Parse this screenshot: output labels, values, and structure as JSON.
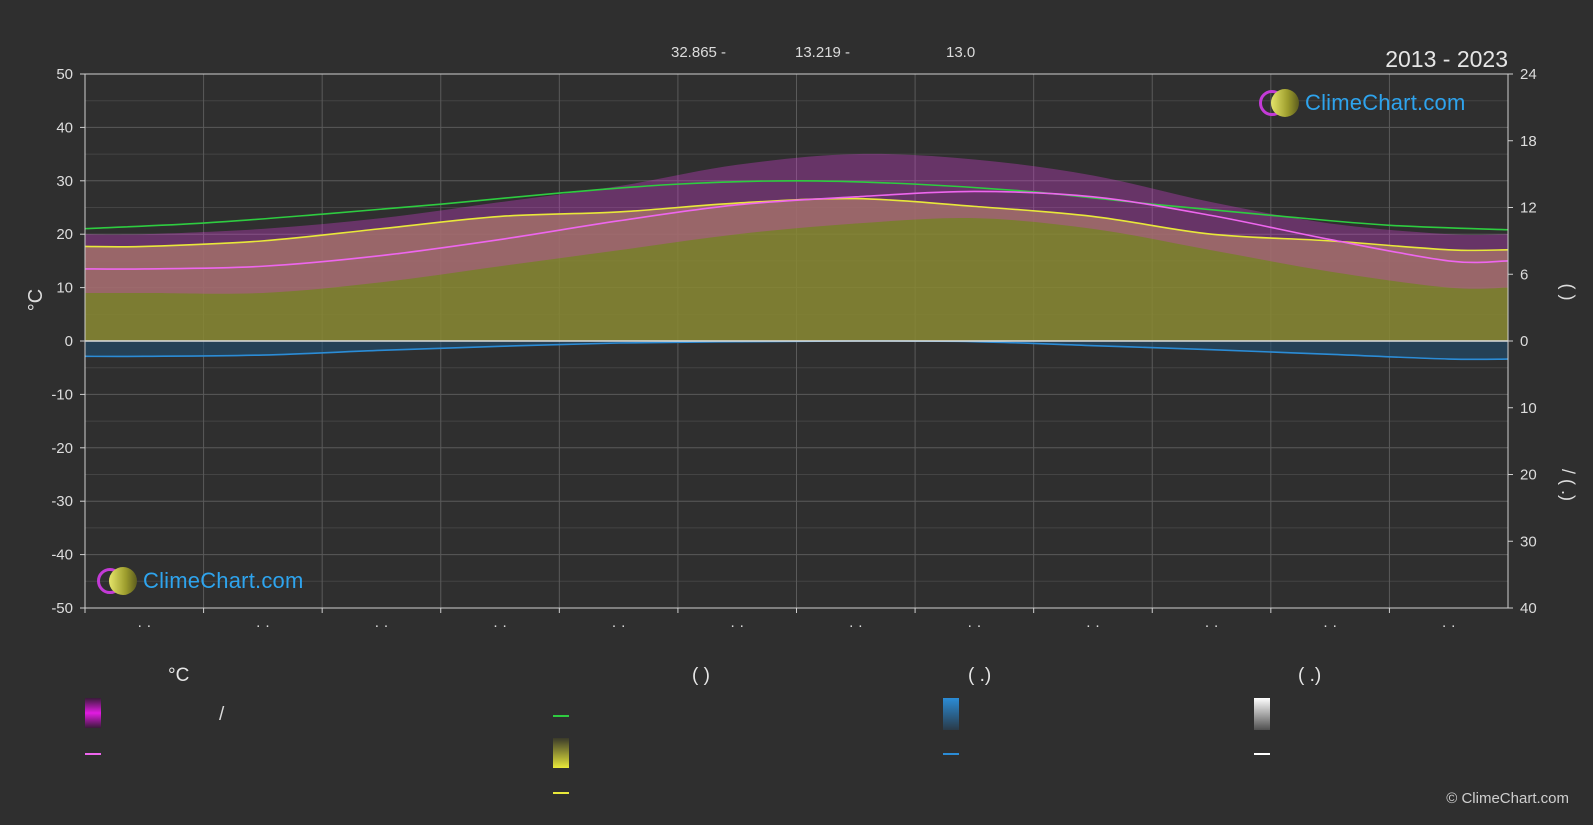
{
  "header": {
    "year_range": "2013 - 2023",
    "stats": [
      "32.865 -",
      "13.219 -",
      "13.0"
    ]
  },
  "chart_data": {
    "type": "area",
    "left_axis": {
      "label": "°C",
      "ylim": [
        -50,
        50
      ],
      "ticks": [
        50,
        40,
        30,
        20,
        10,
        0,
        -10,
        -20,
        -30,
        -40,
        -50
      ]
    },
    "right_axis_top": {
      "label": "(   )",
      "ylim": [
        0,
        24
      ],
      "ticks": [
        24,
        18,
        12,
        6,
        0
      ]
    },
    "right_axis_bottom": {
      "label": "/  (  .)",
      "ylim": [
        0,
        40
      ],
      "ticks": [
        0,
        10,
        20,
        30,
        40
      ]
    },
    "x_months": 12,
    "month_tick_labels": [
      "· ·",
      "· ·",
      "· ·",
      "· ·",
      "· ·",
      "· ·",
      "· ·",
      "· ·",
      "· ·",
      "· ·",
      "· ·",
      "· ·"
    ],
    "grid": true,
    "series": [
      {
        "key": "daylight",
        "color": "#2ecc40",
        "axis": "right_top",
        "x": [
          0,
          1,
          2,
          3,
          4,
          5,
          6,
          7,
          8,
          9,
          10,
          11,
          12
        ],
        "values": [
          10.1,
          10.6,
          11.4,
          12.3,
          13.3,
          14.1,
          14.4,
          14.1,
          13.4,
          12.3,
          11.3,
          10.4,
          10.0
        ]
      },
      {
        "key": "sunshine",
        "color": "#e8e83a",
        "axis": "right_top",
        "x": [
          0.5,
          1.5,
          2.5,
          3.5,
          4.5,
          5.5,
          6.5,
          7.5,
          8.5,
          9.5,
          10.5,
          11.5
        ],
        "values": [
          8.5,
          9.0,
          10.1,
          11.2,
          11.6,
          12.4,
          12.8,
          12.1,
          11.2,
          9.6,
          9.0,
          8.2
        ]
      },
      {
        "key": "mean_temp",
        "color": "#ee66ee",
        "axis": "left",
        "x": [
          0.5,
          1.5,
          2.5,
          3.5,
          4.5,
          5.5,
          6.5,
          7.5,
          8.5,
          9.5,
          10.5,
          11.5
        ],
        "values": [
          13.5,
          14.0,
          16.0,
          19.0,
          22.5,
          25.5,
          27.0,
          28.0,
          27.0,
          23.5,
          19.0,
          15.0
        ]
      },
      {
        "key": "rain",
        "color": "#2b8cd6",
        "axis": "right_bottom",
        "x": [
          0.5,
          1.5,
          2.5,
          3.5,
          4.5,
          5.5,
          6.5,
          7.5,
          8.5,
          9.5,
          10.5,
          11.5
        ],
        "values": [
          2.3,
          2.1,
          1.4,
          0.8,
          0.3,
          0.1,
          0.0,
          0.1,
          0.7,
          1.3,
          2.0,
          2.7
        ]
      }
    ],
    "bands": {
      "temp_range_top": [
        20,
        21,
        23,
        26,
        29,
        33,
        35,
        34,
        31,
        26,
        22,
        20
      ],
      "temp_range_bottom": [
        9,
        9,
        11,
        14,
        17,
        20,
        22,
        23,
        21,
        17,
        13,
        10
      ],
      "sunshine_fill_color": "#8a8a33",
      "temp_band_color": "#d040d0"
    }
  },
  "logos": {
    "text": "ClimeChart.com"
  },
  "legend": {
    "headers": [
      "°C",
      "(          )",
      "(   .)",
      "(   .)"
    ],
    "slash": "/"
  },
  "copyright": "© ClimeChart.com"
}
